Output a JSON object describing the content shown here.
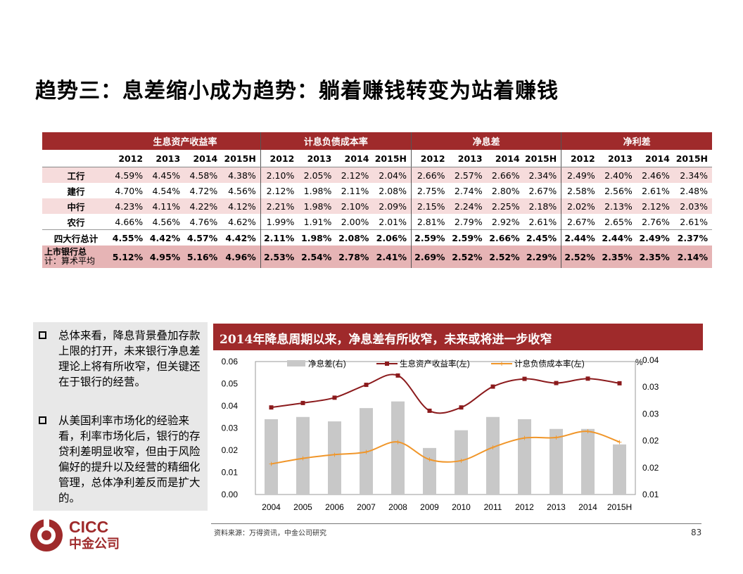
{
  "title": "趋势三：息差缩小成为趋势：躺着赚钱转变为站着赚钱",
  "table": {
    "groups": [
      "生息资产收益率",
      "计息负债成本率",
      "净息差",
      "净利差"
    ],
    "years": [
      "2012",
      "2013",
      "2014",
      "2015H"
    ],
    "rows": [
      {
        "label": "工行",
        "values": [
          "4.59%",
          "4.45%",
          "4.58%",
          "4.38%",
          "2.10%",
          "2.05%",
          "2.12%",
          "2.04%",
          "2.66%",
          "2.57%",
          "2.66%",
          "2.34%",
          "2.49%",
          "2.40%",
          "2.46%",
          "2.34%"
        ]
      },
      {
        "label": "建行",
        "values": [
          "4.70%",
          "4.54%",
          "4.72%",
          "4.56%",
          "2.12%",
          "1.98%",
          "2.11%",
          "2.08%",
          "2.75%",
          "2.74%",
          "2.80%",
          "2.67%",
          "2.58%",
          "2.56%",
          "2.61%",
          "2.48%"
        ]
      },
      {
        "label": "中行",
        "values": [
          "4.23%",
          "4.11%",
          "4.22%",
          "4.12%",
          "2.21%",
          "1.98%",
          "2.10%",
          "2.09%",
          "2.15%",
          "2.24%",
          "2.25%",
          "2.18%",
          "2.02%",
          "2.13%",
          "2.12%",
          "2.03%"
        ]
      },
      {
        "label": "农行",
        "values": [
          "4.66%",
          "4.56%",
          "4.76%",
          "4.62%",
          "1.99%",
          "1.91%",
          "2.00%",
          "2.01%",
          "2.81%",
          "2.79%",
          "2.92%",
          "2.61%",
          "2.67%",
          "2.65%",
          "2.76%",
          "2.61%"
        ]
      },
      {
        "label": "四大行总计",
        "values": [
          "4.55%",
          "4.42%",
          "4.57%",
          "4.42%",
          "2.11%",
          "1.98%",
          "2.08%",
          "2.06%",
          "2.59%",
          "2.59%",
          "2.66%",
          "2.45%",
          "2.44%",
          "2.44%",
          "2.49%",
          "2.37%"
        ]
      },
      {
        "label1": "上市银行总",
        "label2": "计：算术平均",
        "values": [
          "5.12%",
          "4.95%",
          "5.16%",
          "4.96%",
          "2.53%",
          "2.54%",
          "2.78%",
          "2.41%",
          "2.69%",
          "2.52%",
          "2.52%",
          "2.29%",
          "2.52%",
          "2.35%",
          "2.35%",
          "2.14%"
        ]
      }
    ]
  },
  "notes": [
    "总体来看，降息背景叠加存款上限的打开，未来银行净息差理论上将有所收窄，但关键还在于银行的经营。",
    "从美国利率市场化的经验来看，利率市场化后，银行的存贷利差明显收窄，但由于风险偏好的提升以及经营的精细化管理，总体净利差反而是扩大的。"
  ],
  "chart_banner": "2014年降息周期以来，净息差有所收窄，未来或将进一步收窄",
  "chart_data": {
    "type": "bar",
    "categories": [
      "2004",
      "2005",
      "2006",
      "2007",
      "2008",
      "2009",
      "2010",
      "2011",
      "2012",
      "2013",
      "2014",
      "2015H"
    ],
    "left_axis": {
      "ticks": [
        "0.06",
        "0.05",
        "0.04",
        "0.03",
        "0.02",
        "0.01",
        "0.00"
      ],
      "ylim": [
        0,
        0.06
      ]
    },
    "right_axis": {
      "ticks": [
        "0.04",
        "0.03",
        "0.03",
        "0.02",
        "0.02",
        "0.01"
      ],
      "unit": "%",
      "ylim": [
        0.01,
        0.04
      ]
    },
    "series": [
      {
        "name": "净息差(右)",
        "type": "bar",
        "axis": "right",
        "color": "#c8c8c8",
        "values": [
          0.027,
          0.0275,
          0.0265,
          0.0295,
          0.031,
          0.0205,
          0.0245,
          0.0275,
          0.027,
          0.0248,
          0.0248,
          0.0213
        ]
      },
      {
        "name": "生息资产收益率(左)",
        "type": "line",
        "axis": "left",
        "color": "#8b1a1c",
        "values": [
          0.0393,
          0.0413,
          0.0437,
          0.0495,
          0.0537,
          0.0378,
          0.0393,
          0.0487,
          0.0522,
          0.0503,
          0.0523,
          0.0502
        ]
      },
      {
        "name": "计息负债成本率(左)",
        "type": "line",
        "axis": "left",
        "color": "#f0962a",
        "values": [
          0.0138,
          0.0163,
          0.018,
          0.0192,
          0.0237,
          0.0158,
          0.0153,
          0.0213,
          0.0255,
          0.0257,
          0.0285,
          0.0237
        ]
      }
    ]
  },
  "logo": {
    "text": "CICC",
    "subtext": "中金公司",
    "color": "#9f2a2b"
  },
  "source": "资料来源：万得资讯，中金公司研究",
  "page_number": "83"
}
